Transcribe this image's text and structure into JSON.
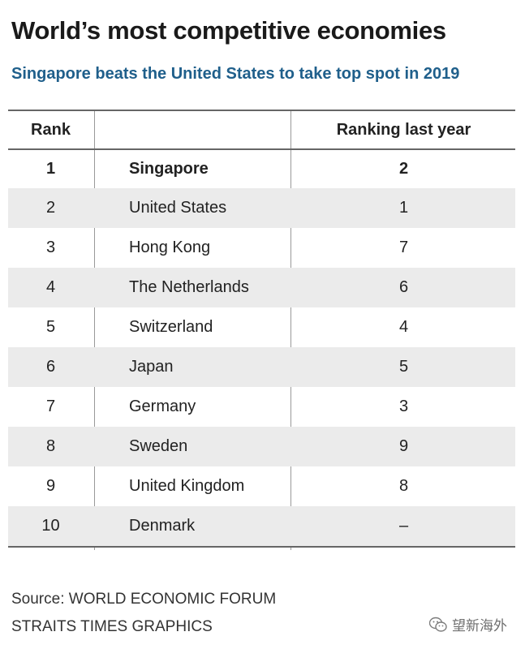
{
  "title": "World’s most competitive economies",
  "subtitle": "Singapore beats the United States to take top spot in 2019",
  "colors": {
    "subtitle": "#1f5f8b",
    "row_shade": "#ebebeb",
    "rule": "#666666"
  },
  "chart_data": {
    "type": "table",
    "columns": [
      "Rank",
      "",
      "Ranking last year"
    ],
    "rows": [
      {
        "rank": "1",
        "country": "Singapore",
        "last_year": "2",
        "highlight": true
      },
      {
        "rank": "2",
        "country": "United States",
        "last_year": "1"
      },
      {
        "rank": "3",
        "country": "Hong Kong",
        "last_year": "7"
      },
      {
        "rank": "4",
        "country": "The Netherlands",
        "last_year": "6"
      },
      {
        "rank": "5",
        "country": "Switzerland",
        "last_year": "4"
      },
      {
        "rank": "6",
        "country": "Japan",
        "last_year": "5"
      },
      {
        "rank": "7",
        "country": "Germany",
        "last_year": "3"
      },
      {
        "rank": "8",
        "country": "Sweden",
        "last_year": "9"
      },
      {
        "rank": "9",
        "country": "United Kingdom",
        "last_year": "8"
      },
      {
        "rank": "10",
        "country": "Denmark",
        "last_year": "–"
      }
    ]
  },
  "source_line": "Source: WORLD ECONOMIC FORUM",
  "credit_line": "STRAITS TIMES GRAPHICS",
  "watermark": {
    "icon": "wechat-icon",
    "text": "望新海外"
  }
}
